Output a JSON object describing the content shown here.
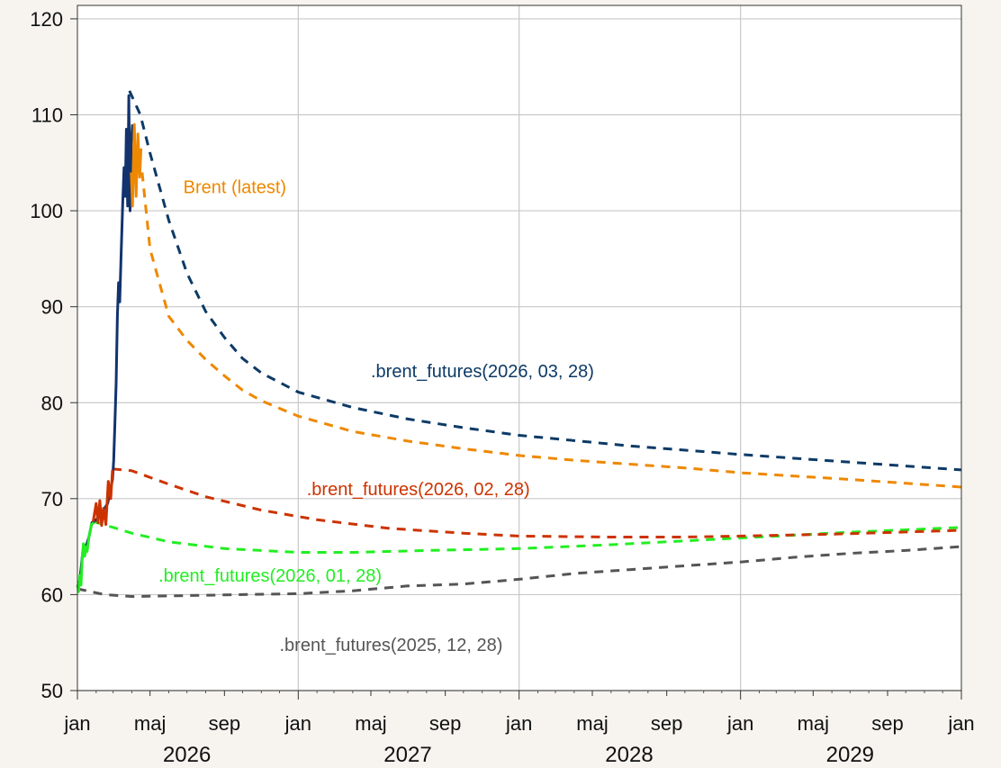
{
  "chart_data": {
    "type": "line",
    "title": "",
    "xlabel": "",
    "ylabel": "",
    "xlim": [
      "2026-01-01",
      "2030-01-01"
    ],
    "ylim": [
      50,
      120
    ],
    "y_ticks": [
      50,
      60,
      70,
      80,
      90,
      100,
      110,
      120
    ],
    "grid": true,
    "legend": "none",
    "x_ticks": [
      {
        "date": "2026-01-01",
        "label": "jan"
      },
      {
        "date": "2026-05-01",
        "label": "maj"
      },
      {
        "date": "2026-09-01",
        "label": "sep"
      },
      {
        "date": "2027-01-01",
        "label": "jan"
      },
      {
        "date": "2027-05-01",
        "label": "maj"
      },
      {
        "date": "2027-09-01",
        "label": "sep"
      },
      {
        "date": "2028-01-01",
        "label": "jan"
      },
      {
        "date": "2028-05-01",
        "label": "maj"
      },
      {
        "date": "2028-09-01",
        "label": "sep"
      },
      {
        "date": "2029-01-01",
        "label": "jan"
      },
      {
        "date": "2029-05-01",
        "label": "maj"
      },
      {
        "date": "2029-09-01",
        "label": "sep"
      },
      {
        "date": "2030-01-01",
        "label": "jan"
      }
    ],
    "years": [
      {
        "label": "2026",
        "date": "2026-07-01"
      },
      {
        "label": "2027",
        "date": "2027-07-01"
      },
      {
        "label": "2028",
        "date": "2028-07-01"
      },
      {
        "label": "2029",
        "date": "2029-07-01"
      }
    ],
    "series": [
      {
        "label": ".brent_futures(2025, 12, 28)",
        "color": "#555555",
        "dash": true,
        "label_at": {
          "date": "2026-12-01",
          "value": 54.8
        },
        "points": [
          [
            "2026-01-01",
            60.6
          ],
          [
            "2026-02-15",
            60.0
          ],
          [
            "2026-04-01",
            59.8
          ],
          [
            "2026-07-01",
            59.9
          ],
          [
            "2026-10-01",
            60.0
          ],
          [
            "2027-01-01",
            60.1
          ],
          [
            "2027-04-01",
            60.4
          ],
          [
            "2027-07-01",
            60.9
          ],
          [
            "2027-10-01",
            61.1
          ],
          [
            "2028-01-01",
            61.6
          ],
          [
            "2028-04-01",
            62.2
          ],
          [
            "2028-07-01",
            62.6
          ],
          [
            "2028-10-01",
            63.0
          ],
          [
            "2029-01-01",
            63.4
          ],
          [
            "2029-04-01",
            63.9
          ],
          [
            "2029-07-01",
            64.3
          ],
          [
            "2029-10-01",
            64.6
          ],
          [
            "2030-01-01",
            65.0
          ]
        ]
      },
      {
        "label": ".brent_futures(2026, 01, 28)",
        "color": "#22ee22",
        "dash": true,
        "label_at": {
          "date": "2026-05-15",
          "value": 62.0
        },
        "points": [
          [
            "2026-01-28",
            67.6
          ],
          [
            "2026-03-01",
            67.0
          ],
          [
            "2026-04-01",
            66.4
          ],
          [
            "2026-06-01",
            65.5
          ],
          [
            "2026-09-01",
            64.8
          ],
          [
            "2027-01-01",
            64.4
          ],
          [
            "2027-04-01",
            64.4
          ],
          [
            "2027-08-01",
            64.6
          ],
          [
            "2028-01-01",
            64.8
          ],
          [
            "2028-06-01",
            65.2
          ],
          [
            "2029-01-01",
            65.9
          ],
          [
            "2029-07-01",
            66.5
          ],
          [
            "2030-01-01",
            67.0
          ]
        ]
      },
      {
        "label": ".brent_futures(2026, 02, 28)",
        "color": "#cc3300",
        "dash": true,
        "label_at": {
          "date": "2027-01-15",
          "value": 71.0
        },
        "points": [
          [
            "2026-02-28",
            73.1
          ],
          [
            "2026-04-01",
            72.9
          ],
          [
            "2026-06-01",
            71.5
          ],
          [
            "2026-08-01",
            70.2
          ],
          [
            "2026-11-01",
            68.8
          ],
          [
            "2027-02-01",
            67.8
          ],
          [
            "2027-06-01",
            66.9
          ],
          [
            "2027-10-01",
            66.4
          ],
          [
            "2028-01-01",
            66.1
          ],
          [
            "2028-06-01",
            66.0
          ],
          [
            "2028-10-01",
            66.0
          ],
          [
            "2029-01-01",
            66.1
          ],
          [
            "2029-06-01",
            66.3
          ],
          [
            "2030-01-01",
            66.7
          ]
        ]
      },
      {
        "label": "",
        "color": "#ee8800",
        "dash": true,
        "label_at": null,
        "points": [
          [
            "2026-04-18",
            104.0
          ],
          [
            "2026-05-01",
            96.0
          ],
          [
            "2026-06-01",
            89.0
          ],
          [
            "2026-07-01",
            86.5
          ],
          [
            "2026-08-01",
            84.5
          ],
          [
            "2026-09-01",
            82.8
          ],
          [
            "2026-10-01",
            81.3
          ],
          [
            "2026-11-01",
            80.2
          ],
          [
            "2027-01-01",
            78.6
          ],
          [
            "2027-04-01",
            77.0
          ],
          [
            "2027-07-01",
            76.0
          ],
          [
            "2027-10-01",
            75.2
          ],
          [
            "2028-01-01",
            74.5
          ],
          [
            "2028-04-01",
            74.0
          ],
          [
            "2028-07-01",
            73.6
          ],
          [
            "2028-10-01",
            73.2
          ],
          [
            "2029-01-01",
            72.7
          ],
          [
            "2029-07-01",
            72.0
          ],
          [
            "2030-01-01",
            71.2
          ]
        ]
      },
      {
        "label": ".brent_futures(2026, 03, 28)",
        "color": "#0d3a66",
        "dash": true,
        "label_at": {
          "date": "2027-05-01",
          "value": 83.3
        },
        "points": [
          [
            "2026-03-28",
            112.5
          ],
          [
            "2026-04-15",
            110.0
          ],
          [
            "2026-05-01",
            106.0
          ],
          [
            "2026-06-01",
            99.0
          ],
          [
            "2026-07-01",
            93.5
          ],
          [
            "2026-08-01",
            89.5
          ],
          [
            "2026-09-01",
            86.8
          ],
          [
            "2026-10-01",
            84.6
          ],
          [
            "2026-11-01",
            83.1
          ],
          [
            "2027-01-01",
            81.1
          ],
          [
            "2027-04-01",
            79.5
          ],
          [
            "2027-07-01",
            78.3
          ],
          [
            "2027-10-01",
            77.4
          ],
          [
            "2028-01-01",
            76.6
          ],
          [
            "2028-07-01",
            75.5
          ],
          [
            "2029-01-01",
            74.6
          ],
          [
            "2029-07-01",
            73.8
          ],
          [
            "2030-01-01",
            73.0
          ]
        ]
      },
      {
        "label": "",
        "color": "#13336e",
        "dash": false,
        "label_at": null,
        "points": [
          [
            "2026-01-01",
            60.8
          ],
          [
            "2026-01-05",
            61.5
          ],
          [
            "2026-01-10",
            64.5
          ],
          [
            "2026-01-15",
            65.0
          ],
          [
            "2026-01-20",
            66.0
          ],
          [
            "2026-01-25",
            67.5
          ],
          [
            "2026-02-01",
            67.8
          ],
          [
            "2026-02-10",
            68.5
          ],
          [
            "2026-02-20",
            69.5
          ],
          [
            "2026-02-28",
            72.0
          ],
          [
            "2026-03-02",
            74.0
          ],
          [
            "2026-03-04",
            78.0
          ],
          [
            "2026-03-06",
            82.0
          ],
          [
            "2026-03-08",
            89.0
          ],
          [
            "2026-03-10",
            92.5
          ],
          [
            "2026-03-12",
            90.5
          ],
          [
            "2026-03-14",
            95.0
          ],
          [
            "2026-03-17",
            101.0
          ],
          [
            "2026-03-19",
            104.5
          ],
          [
            "2026-03-21",
            101.5
          ],
          [
            "2026-03-23",
            108.5
          ],
          [
            "2026-03-25",
            100.5
          ],
          [
            "2026-03-27",
            112.0
          ],
          [
            "2026-03-29",
            100.0
          ],
          [
            "2026-03-31",
            107.0
          ],
          [
            "2026-04-02",
            109.0
          ]
        ]
      },
      {
        "label": "Brent (latest)",
        "color": "#ee8800",
        "dash": false,
        "label_at": {
          "date": "2026-06-25",
          "value": 102.5
        },
        "points": [
          [
            "2026-03-31",
            104.0
          ],
          [
            "2026-04-02",
            100.5
          ],
          [
            "2026-04-05",
            109.0
          ],
          [
            "2026-04-08",
            101.5
          ],
          [
            "2026-04-11",
            108.0
          ],
          [
            "2026-04-14",
            103.5
          ],
          [
            "2026-04-16",
            106.5
          ]
        ]
      },
      {
        "label": "",
        "color": "#cc3300",
        "dash": false,
        "label_at": null,
        "points": [
          [
            "2026-01-27",
            67.6
          ],
          [
            "2026-02-01",
            69.5
          ],
          [
            "2026-02-04",
            67.5
          ],
          [
            "2026-02-07",
            69.8
          ],
          [
            "2026-02-10",
            67.2
          ],
          [
            "2026-02-13",
            69.0
          ],
          [
            "2026-02-17",
            67.3
          ],
          [
            "2026-02-21",
            71.8
          ],
          [
            "2026-02-25",
            70.0
          ],
          [
            "2026-02-28",
            73.0
          ]
        ]
      },
      {
        "label": "",
        "color": "#22ee22",
        "dash": false,
        "label_at": null,
        "points": [
          [
            "2026-01-01",
            61.0
          ],
          [
            "2026-01-03",
            60.3
          ],
          [
            "2026-01-05",
            62.0
          ],
          [
            "2026-01-07",
            61.0
          ],
          [
            "2026-01-09",
            64.0
          ],
          [
            "2026-01-11",
            65.3
          ],
          [
            "2026-01-13",
            64.0
          ],
          [
            "2026-01-15",
            65.0
          ],
          [
            "2026-01-17",
            64.5
          ],
          [
            "2026-01-20",
            66.0
          ],
          [
            "2026-01-24",
            67.3
          ],
          [
            "2026-01-28",
            67.5
          ]
        ]
      }
    ]
  }
}
